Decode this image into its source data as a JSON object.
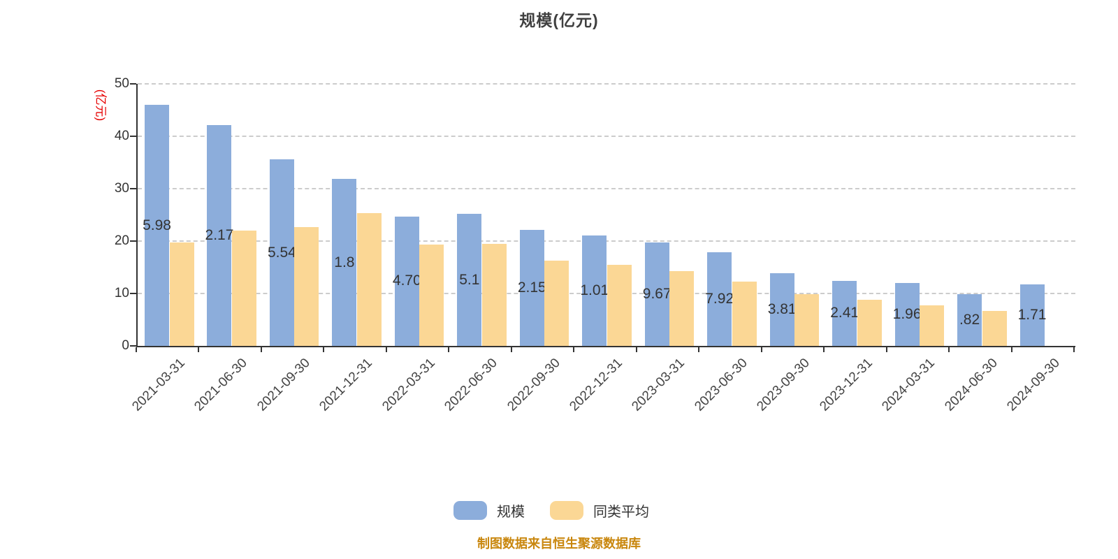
{
  "title": "规模(亿元)",
  "y_axis": {
    "name": "(亿元)",
    "name_color": "#e60000",
    "ticks": [
      0,
      10,
      20,
      30,
      40,
      50
    ],
    "max": 50
  },
  "chart_data": {
    "type": "bar",
    "title": "规模(亿元)",
    "ylabel": "(亿元)",
    "ylim": [
      0,
      50
    ],
    "grid": true,
    "grid_style": "dashed",
    "legend_position": "bottom",
    "categories": [
      "2021-03-31",
      "2021-06-30",
      "2021-09-30",
      "2021-12-31",
      "2022-03-31",
      "2022-06-30",
      "2022-09-30",
      "2022-12-31",
      "2023-03-31",
      "2023-06-30",
      "2023-09-30",
      "2023-12-31",
      "2024-03-31",
      "2024-06-30",
      "2024-09-30"
    ],
    "series": [
      {
        "name": "规模",
        "slug": "scale",
        "color": "#8caddb",
        "values": [
          45.98,
          42.17,
          35.54,
          31.84,
          24.7,
          25.18,
          22.15,
          21.01,
          19.67,
          17.92,
          13.81,
          12.41,
          11.96,
          9.82,
          11.71
        ],
        "visible_labels": [
          "5.98",
          "2.17",
          "5.54",
          "1.8",
          "4.70",
          "5.1",
          "2.15",
          "1.01",
          "9.67",
          "7.92",
          "3.81",
          "2.41",
          "1.96",
          ".82",
          "1.71"
        ]
      },
      {
        "name": "同类平均",
        "slug": "peer-average",
        "color": "#fbd795",
        "values": [
          19.7,
          22.0,
          22.7,
          25.3,
          19.3,
          19.5,
          16.3,
          15.5,
          14.3,
          12.3,
          9.9,
          8.8,
          7.7,
          6.7,
          null
        ],
        "visible_labels": []
      }
    ]
  },
  "legend": {
    "items": [
      {
        "label": "规模",
        "color": "#8caddb"
      },
      {
        "label": "同类平均",
        "color": "#fbd795"
      }
    ]
  },
  "footer": {
    "text": "制图数据来自恒生聚源数据库"
  }
}
